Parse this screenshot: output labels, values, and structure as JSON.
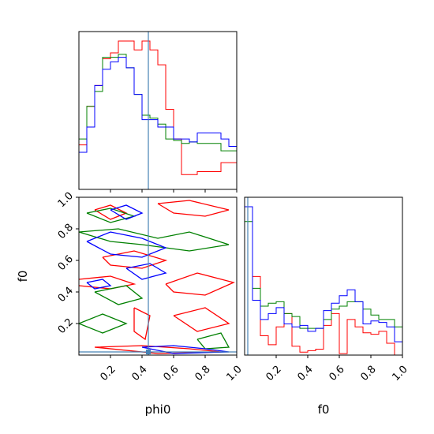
{
  "chart_data": {
    "type": "corner",
    "parameters": [
      "phi0",
      "f0"
    ],
    "xlabel": "phi0",
    "xlabel2": "f0",
    "ylabel": "f0",
    "xlim": [
      0,
      1
    ],
    "ylim": [
      0,
      1
    ],
    "ticks": [
      "0.2",
      "0.4",
      "0.6",
      "0.8",
      "1.0"
    ],
    "tick_values": [
      0.2,
      0.4,
      0.6,
      0.8,
      1.0
    ],
    "truth": {
      "phi0": 0.44,
      "f0": 0.02
    },
    "colors": {
      "red": "#ff0000",
      "green": "#008000",
      "blue": "#0000ff",
      "truth": "#4682b4"
    },
    "hist_phi0": {
      "bin_edges": [
        0.0,
        0.05,
        0.1,
        0.15,
        0.2,
        0.25,
        0.3,
        0.35,
        0.4,
        0.45,
        0.5,
        0.55,
        0.6,
        0.65,
        0.7,
        0.75,
        0.8,
        0.85,
        0.9,
        0.95,
        1.0
      ],
      "series": [
        {
          "color": "red",
          "values": [
            0.3,
            0.56,
            0.7,
            0.88,
            0.92,
            1.0,
            1.0,
            0.94,
            1.0,
            0.94,
            0.84,
            0.54,
            0.34,
            0.1,
            0.1,
            0.12,
            0.12,
            0.12,
            0.18,
            0.18
          ]
        },
        {
          "color": "green",
          "values": [
            0.34,
            0.56,
            0.66,
            0.89,
            0.89,
            0.91,
            0.82,
            0.64,
            0.5,
            0.48,
            0.44,
            0.34,
            0.33,
            0.31,
            0.32,
            0.31,
            0.31,
            0.31,
            0.26,
            0.26
          ]
        },
        {
          "color": "blue",
          "values": [
            0.25,
            0.42,
            0.7,
            0.81,
            0.86,
            0.89,
            0.82,
            0.64,
            0.47,
            0.47,
            0.42,
            0.42,
            0.34,
            0.34,
            0.32,
            0.38,
            0.38,
            0.38,
            0.34,
            0.29
          ]
        }
      ]
    },
    "hist_f0": {
      "bin_edges": [
        0.0,
        0.05,
        0.1,
        0.15,
        0.2,
        0.25,
        0.3,
        0.35,
        0.4,
        0.45,
        0.5,
        0.55,
        0.6,
        0.65,
        0.7,
        0.75,
        0.8,
        0.85,
        0.9,
        0.95,
        1.0
      ],
      "series": [
        {
          "color": "red",
          "values": [
            1.0,
            0.53,
            0.13,
            0.07,
            0.19,
            0.28,
            0.06,
            0.02,
            0.03,
            0.04,
            0.2,
            0.28,
            0.01,
            0.24,
            0.19,
            0.15,
            0.14,
            0.16,
            0.08,
            0.0
          ]
        },
        {
          "color": "green",
          "values": [
            0.9,
            0.45,
            0.33,
            0.35,
            0.36,
            0.28,
            0.26,
            0.18,
            0.18,
            0.18,
            0.24,
            0.31,
            0.33,
            0.36,
            0.36,
            0.31,
            0.27,
            0.24,
            0.24,
            0.19
          ]
        },
        {
          "color": "blue",
          "values": [
            1.0,
            0.37,
            0.24,
            0.28,
            0.32,
            0.21,
            0.19,
            0.2,
            0.16,
            0.18,
            0.3,
            0.35,
            0.4,
            0.44,
            0.36,
            0.21,
            0.23,
            0.22,
            0.19,
            0.09
          ]
        }
      ]
    },
    "contours_2d": {
      "note": "2D joint density of phi0 (x) vs f0 (y); closed contour loops per chain, in data units",
      "series": [
        {
          "color": "red",
          "loops": [
            [
              [
                0.1,
                0.92
              ],
              [
                0.2,
                0.95
              ],
              [
                0.3,
                0.9
              ],
              [
                0.2,
                0.86
              ],
              [
                0.1,
                0.92
              ]
            ],
            [
              [
                0.5,
                0.96
              ],
              [
                0.7,
                0.98
              ],
              [
                0.95,
                0.92
              ],
              [
                0.8,
                0.88
              ],
              [
                0.6,
                0.9
              ],
              [
                0.5,
                0.96
              ]
            ],
            [
              [
                0.15,
                0.62
              ],
              [
                0.35,
                0.66
              ],
              [
                0.55,
                0.6
              ],
              [
                0.4,
                0.55
              ],
              [
                0.2,
                0.57
              ],
              [
                0.15,
                0.62
              ]
            ],
            [
              [
                0.0,
                0.48
              ],
              [
                0.2,
                0.5
              ],
              [
                0.35,
                0.45
              ],
              [
                0.2,
                0.42
              ],
              [
                0.0,
                0.44
              ]
            ],
            [
              [
                0.55,
                0.45
              ],
              [
                0.75,
                0.52
              ],
              [
                0.98,
                0.46
              ],
              [
                0.8,
                0.38
              ],
              [
                0.6,
                0.4
              ],
              [
                0.55,
                0.45
              ]
            ],
            [
              [
                0.35,
                0.3
              ],
              [
                0.45,
                0.25
              ],
              [
                0.42,
                0.1
              ],
              [
                0.35,
                0.15
              ],
              [
                0.35,
                0.3
              ]
            ],
            [
              [
                0.6,
                0.25
              ],
              [
                0.8,
                0.3
              ],
              [
                0.95,
                0.2
              ],
              [
                0.75,
                0.15
              ],
              [
                0.6,
                0.25
              ]
            ],
            [
              [
                0.1,
                0.05
              ],
              [
                0.4,
                0.06
              ],
              [
                0.7,
                0.04
              ],
              [
                0.9,
                0.02
              ],
              [
                0.5,
                0.01
              ],
              [
                0.1,
                0.05
              ]
            ]
          ]
        },
        {
          "color": "green",
          "loops": [
            [
              [
                0.05,
                0.9
              ],
              [
                0.2,
                0.93
              ],
              [
                0.35,
                0.88
              ],
              [
                0.2,
                0.84
              ],
              [
                0.05,
                0.9
              ]
            ],
            [
              [
                0.0,
                0.78
              ],
              [
                0.25,
                0.8
              ],
              [
                0.5,
                0.74
              ],
              [
                0.7,
                0.78
              ],
              [
                0.95,
                0.7
              ],
              [
                0.7,
                0.66
              ],
              [
                0.4,
                0.7
              ],
              [
                0.2,
                0.72
              ],
              [
                0.0,
                0.78
              ]
            ],
            [
              [
                0.1,
                0.4
              ],
              [
                0.3,
                0.44
              ],
              [
                0.4,
                0.36
              ],
              [
                0.25,
                0.32
              ],
              [
                0.1,
                0.4
              ]
            ],
            [
              [
                0.0,
                0.2
              ],
              [
                0.15,
                0.26
              ],
              [
                0.3,
                0.2
              ],
              [
                0.15,
                0.14
              ],
              [
                0.0,
                0.2
              ]
            ],
            [
              [
                0.75,
                0.1
              ],
              [
                0.9,
                0.14
              ],
              [
                0.95,
                0.05
              ],
              [
                0.8,
                0.04
              ],
              [
                0.75,
                0.1
              ]
            ]
          ]
        },
        {
          "color": "blue",
          "loops": [
            [
              [
                0.2,
                0.92
              ],
              [
                0.3,
                0.95
              ],
              [
                0.4,
                0.9
              ],
              [
                0.3,
                0.86
              ],
              [
                0.2,
                0.92
              ]
            ],
            [
              [
                0.05,
                0.72
              ],
              [
                0.2,
                0.78
              ],
              [
                0.4,
                0.74
              ],
              [
                0.55,
                0.68
              ],
              [
                0.4,
                0.62
              ],
              [
                0.2,
                0.64
              ],
              [
                0.05,
                0.72
              ]
            ],
            [
              [
                0.05,
                0.46
              ],
              [
                0.15,
                0.48
              ],
              [
                0.2,
                0.44
              ],
              [
                0.1,
                0.42
              ],
              [
                0.05,
                0.46
              ]
            ],
            [
              [
                0.3,
                0.55
              ],
              [
                0.45,
                0.58
              ],
              [
                0.55,
                0.52
              ],
              [
                0.4,
                0.48
              ],
              [
                0.3,
                0.55
              ]
            ],
            [
              [
                0.4,
                0.05
              ],
              [
                0.6,
                0.06
              ],
              [
                0.8,
                0.04
              ],
              [
                0.95,
                0.02
              ],
              [
                0.6,
                0.01
              ],
              [
                0.4,
                0.05
              ]
            ]
          ]
        }
      ]
    }
  }
}
